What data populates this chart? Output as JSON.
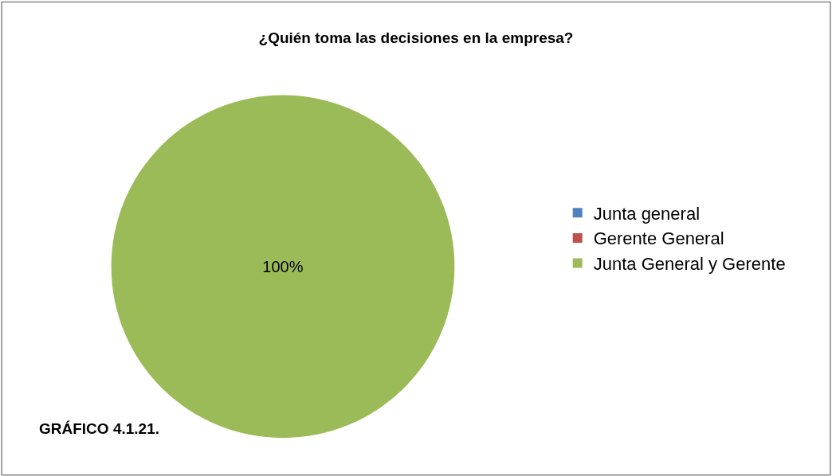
{
  "chart_data": {
    "type": "pie",
    "title": "¿Quién toma las decisiones en la empresa?",
    "categories": [
      "Junta general",
      "Gerente General",
      "Junta General y Gerente"
    ],
    "values": [
      0,
      0,
      100
    ],
    "colors": [
      "#4f81bd",
      "#c0504d",
      "#9bbb59"
    ],
    "value_labels": [
      null,
      null,
      "100%"
    ],
    "legend": "right",
    "annotations": [
      "GRÁFICO 4.1.21."
    ]
  }
}
